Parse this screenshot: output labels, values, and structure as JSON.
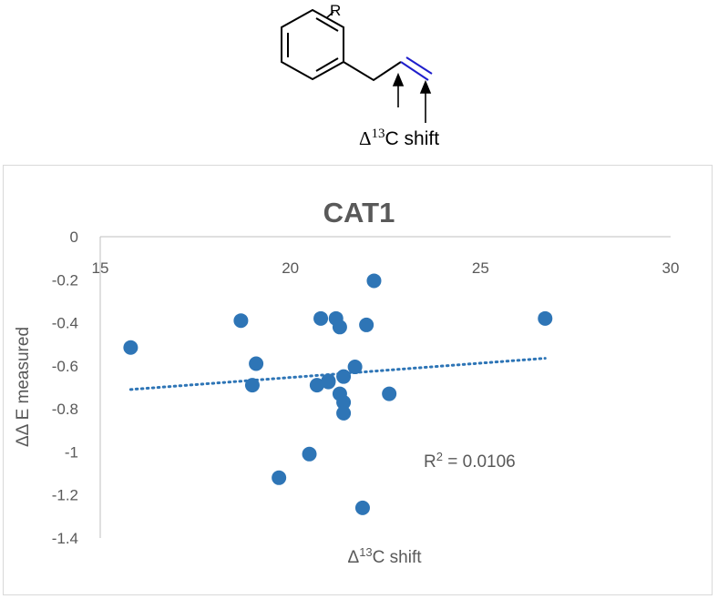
{
  "scheme": {
    "substituent_label": "R",
    "shift_label_delta": "Δ",
    "shift_label_super": "13",
    "shift_label_rest": "C shift",
    "bond_color": "#1f1fcc"
  },
  "chart_data": {
    "type": "scatter",
    "title": "CAT1",
    "xlabel_prefix": "Δ",
    "xlabel_super": "13",
    "xlabel_rest": "C shift",
    "ylabel": "ΔΔ E measured",
    "xlim": [
      15,
      30
    ],
    "ylim": [
      -1.4,
      0
    ],
    "xticks": [
      15,
      20,
      25,
      30
    ],
    "xtick_labels": [
      "15",
      "20",
      "25",
      "30"
    ],
    "yticks": [
      0,
      -0.2,
      -0.4,
      -0.6,
      -0.8,
      -1,
      -1.2,
      -1.4
    ],
    "ytick_labels": [
      "0",
      "-0.2",
      "-0.4",
      "-0.6",
      "-0.8",
      "-1",
      "-1.2",
      "-1.4"
    ],
    "x_axis_position": "top",
    "grid": false,
    "point_color": "#2e75b6",
    "series": [
      {
        "x": [
          15.8,
          18.7,
          19.1,
          19.0,
          19.7,
          20.5,
          20.7,
          20.8,
          21.0,
          21.0,
          21.2,
          21.3,
          21.3,
          21.4,
          21.4,
          21.4,
          21.7,
          21.9,
          22.0,
          22.2,
          22.6,
          26.7
        ],
        "y": [
          -0.515,
          -0.39,
          -0.59,
          -0.69,
          -1.12,
          -1.01,
          -0.69,
          -0.38,
          -0.67,
          -0.675,
          -0.38,
          -0.42,
          -0.73,
          -0.65,
          -0.77,
          -0.82,
          -0.605,
          -1.26,
          -0.41,
          -0.205,
          -0.73,
          -0.38
        ]
      }
    ],
    "trendline": {
      "style": "dotted",
      "x": [
        15.8,
        26.7
      ],
      "y": [
        -0.71,
        -0.565
      ]
    },
    "annotation": {
      "prefix": "R",
      "super": "2",
      "rest": " = 0.0106"
    }
  }
}
